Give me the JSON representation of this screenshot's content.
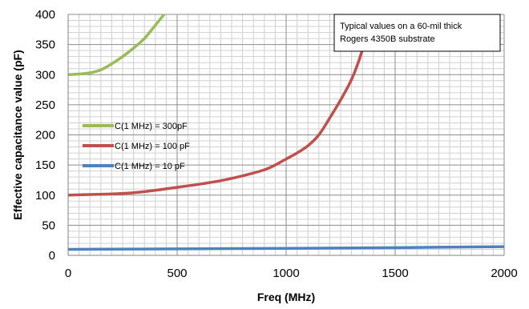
{
  "chart_data": {
    "type": "line",
    "title": "",
    "xlabel": "Freq (MHz)",
    "ylabel": "Effective capacitance value (pF)",
    "xlim": [
      0,
      2000
    ],
    "ylim": [
      0,
      400
    ],
    "x_ticks": [
      0,
      500,
      1000,
      1500,
      2000
    ],
    "y_ticks": [
      0,
      50,
      100,
      150,
      200,
      250,
      300,
      350,
      400
    ],
    "grid": true,
    "legend_position": "left",
    "annotation": {
      "lines": [
        "Typical values on a 60-mil thick",
        "Rogers 4350B substrate"
      ]
    },
    "series": [
      {
        "name": "C(1 MHz) = 300pF",
        "color": "#9BBB59",
        "x": [
          0,
          50,
          100,
          150,
          200,
          250,
          300,
          350,
          400,
          440
        ],
        "y": [
          300,
          301,
          303,
          308,
          318,
          330,
          344,
          360,
          382,
          400
        ]
      },
      {
        "name": "C(1 MHz) = 100 pF",
        "color": "#C0504D",
        "x": [
          0,
          100,
          200,
          300,
          400,
          500,
          600,
          700,
          800,
          900,
          950,
          1000,
          1050,
          1100,
          1150,
          1200,
          1250,
          1300,
          1340,
          1380
        ],
        "y": [
          100,
          101,
          102,
          104,
          108,
          113,
          118,
          124,
          132,
          142,
          150,
          160,
          170,
          182,
          200,
          228,
          258,
          292,
          330,
          380
        ]
      },
      {
        "name": "C(1 MHz) = 10 pF",
        "color": "#4F81BD",
        "x": [
          0,
          500,
          1000,
          1500,
          2000
        ],
        "y": [
          10,
          10.8,
          11.6,
          12.8,
          14.5
        ]
      }
    ]
  }
}
